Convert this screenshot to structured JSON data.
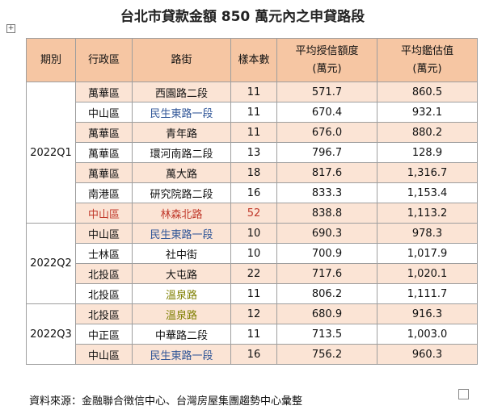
{
  "title": "台北市貸款金額 850 萬元內之申貸路段",
  "columns": [
    "期別",
    "行政區",
    "路街",
    "樣本數",
    [
      "平均授信額度",
      "(萬元)"
    ],
    [
      "平均鑑估值",
      "(萬元)"
    ]
  ],
  "groups": [
    {
      "period": "2022Q1",
      "rows": [
        {
          "cells": [
            "萬華區",
            "西園路二段",
            "11",
            "571.7",
            "860.5"
          ]
        },
        {
          "cells": [
            "中山區",
            "民生東路一段",
            "11",
            "670.4",
            "932.1"
          ],
          "street_color": "#2f5597"
        },
        {
          "cells": [
            "萬華區",
            "青年路",
            "11",
            "676.0",
            "880.2"
          ]
        },
        {
          "cells": [
            "萬華區",
            "環河南路二段",
            "13",
            "796.7",
            "128.9"
          ]
        },
        {
          "cells": [
            "萬華區",
            "萬大路",
            "18",
            "817.6",
            "1,316.7"
          ]
        },
        {
          "cells": [
            "南港區",
            "研究院路二段",
            "16",
            "833.3",
            "1,153.4"
          ]
        },
        {
          "cells": [
            "中山區",
            "林森北路",
            "52",
            "838.8",
            "1,113.2"
          ],
          "row_color": "#c0392b"
        }
      ]
    },
    {
      "period": "2022Q2",
      "rows": [
        {
          "cells": [
            "中山區",
            "民生東路一段",
            "10",
            "690.3",
            "978.3"
          ],
          "street_color": "#2f5597"
        },
        {
          "cells": [
            "士林區",
            "社中街",
            "10",
            "700.9",
            "1,017.9"
          ]
        },
        {
          "cells": [
            "北投區",
            "大屯路",
            "22",
            "717.6",
            "1,020.1"
          ]
        },
        {
          "cells": [
            "北投區",
            "溫泉路",
            "11",
            "806.2",
            "1,111.7"
          ],
          "street_color": "#7f7f00"
        }
      ]
    },
    {
      "period": "2022Q3",
      "rows": [
        {
          "cells": [
            "北投區",
            "溫泉路",
            "12",
            "680.9",
            "916.3"
          ],
          "street_color": "#7f7f00"
        },
        {
          "cells": [
            "中正區",
            "中華路二段",
            "11",
            "713.5",
            "1,003.0"
          ]
        },
        {
          "cells": [
            "中山區",
            "民生東路一段",
            "16",
            "756.2",
            "960.3"
          ],
          "street_color": "#2f5597"
        }
      ]
    }
  ],
  "source": "資料來源：金融聯合徵信中心、台灣房屋集團趨勢中心彙整"
}
